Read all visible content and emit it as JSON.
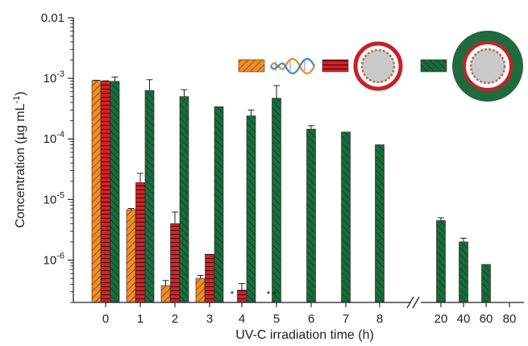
{
  "chart_data": {
    "type": "bar",
    "xlabel": "UV-C irradiation time (h)",
    "ylabel_main": "Concentration (µg mL",
    "ylabel_sup": "-1",
    "ylabel_close": ")",
    "yscale": "log",
    "ylim": [
      2e-07,
      0.01
    ],
    "y_ticks": [
      {
        "base": "0.01",
        "exp": ""
      },
      {
        "base": "10",
        "exp": "-3"
      },
      {
        "base": "10",
        "exp": "-4"
      },
      {
        "base": "10",
        "exp": "-5"
      },
      {
        "base": "10",
        "exp": "-6"
      }
    ],
    "y_tick_values": [
      0.01,
      0.001,
      0.0001,
      1e-05,
      1e-06
    ],
    "categories": [
      "0",
      "1",
      "2",
      "3",
      "4",
      "5",
      "6",
      "7",
      "8",
      "20",
      "40",
      "60",
      "80"
    ],
    "axis_break": "//",
    "series": [
      {
        "key": "dna",
        "color": "#f28c28",
        "hatch": "orange",
        "icon": "dna-double-helix-icon",
        "values": [
          0.00092,
          6.8e-06,
          3.8e-07,
          5e-07,
          null,
          null,
          null,
          null,
          null,
          null,
          null,
          null,
          null
        ],
        "errors": [
          1e-05,
          3e-07,
          8e-08,
          6e-08,
          null,
          null,
          null,
          null,
          null,
          null,
          null,
          null,
          null
        ]
      },
      {
        "key": "particle",
        "color": "#d42027",
        "hatch": "red",
        "icon": "dna-particle-red-shell-icon",
        "values": [
          0.0009,
          1.9e-05,
          4e-06,
          1.25e-06,
          3.2e-07,
          null,
          null,
          null,
          null,
          null,
          null,
          null,
          null
        ],
        "errors": [
          1e-05,
          8e-06,
          2.2e-06,
          null,
          9e-08,
          null,
          null,
          null,
          null,
          null,
          null,
          null,
          null
        ]
      },
      {
        "key": "coated",
        "color": "#1a6b3c",
        "hatch": "green",
        "icon": "dna-particle-green-coated-icon",
        "values": [
          0.00089,
          0.00063,
          0.0005,
          0.00034,
          0.00024,
          0.00047,
          0.000145,
          0.00013,
          8e-05,
          4.5e-06,
          2e-06,
          8.5e-07,
          null
        ],
        "errors": [
          0.00016,
          0.00032,
          0.00015,
          null,
          6e-05,
          0.00029,
          2e-05,
          null,
          null,
          5e-07,
          3e-07,
          null,
          null
        ]
      }
    ],
    "annotations": [
      {
        "category": "4",
        "text": "*"
      },
      {
        "category": "5",
        "text": "* *"
      }
    ]
  }
}
